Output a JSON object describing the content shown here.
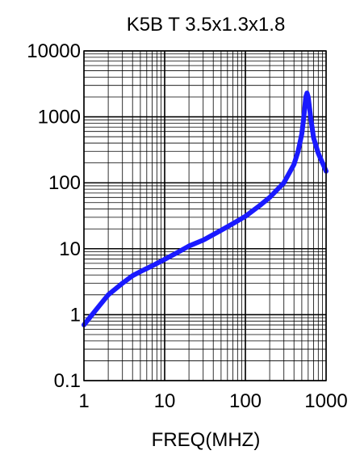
{
  "chart_data": {
    "type": "line",
    "title": "K5B T 3.5x1.3x1.8",
    "xlabel": "FREQ(MHZ)",
    "ylabel": "",
    "x_scale": "log",
    "y_scale": "log",
    "xlim": [
      1,
      1000
    ],
    "ylim": [
      0.1,
      10000
    ],
    "x_ticks": [
      1,
      10,
      100,
      1000
    ],
    "x_tick_labels": [
      "1",
      "10",
      "100",
      "1000"
    ],
    "y_ticks": [
      0.1,
      1,
      10,
      100,
      1000,
      10000
    ],
    "y_tick_labels": [
      "0.1",
      "1",
      "10",
      "100",
      "1000",
      "10000"
    ],
    "grid": true,
    "series": [
      {
        "color": "#1a1aff",
        "x": [
          1,
          1.5,
          2,
          3,
          4,
          5,
          7,
          10,
          15,
          20,
          30,
          50,
          70,
          100,
          150,
          200,
          300,
          400,
          450,
          500,
          530,
          560,
          580,
          600,
          650,
          700,
          800,
          1000
        ],
        "y": [
          0.7,
          1.3,
          2.0,
          3.0,
          3.9,
          4.5,
          5.5,
          6.9,
          9.0,
          11.0,
          13.5,
          19,
          24,
          31,
          45,
          60,
          100,
          190,
          300,
          550,
          1000,
          2000,
          2300,
          2000,
          900,
          480,
          280,
          150
        ]
      }
    ]
  }
}
